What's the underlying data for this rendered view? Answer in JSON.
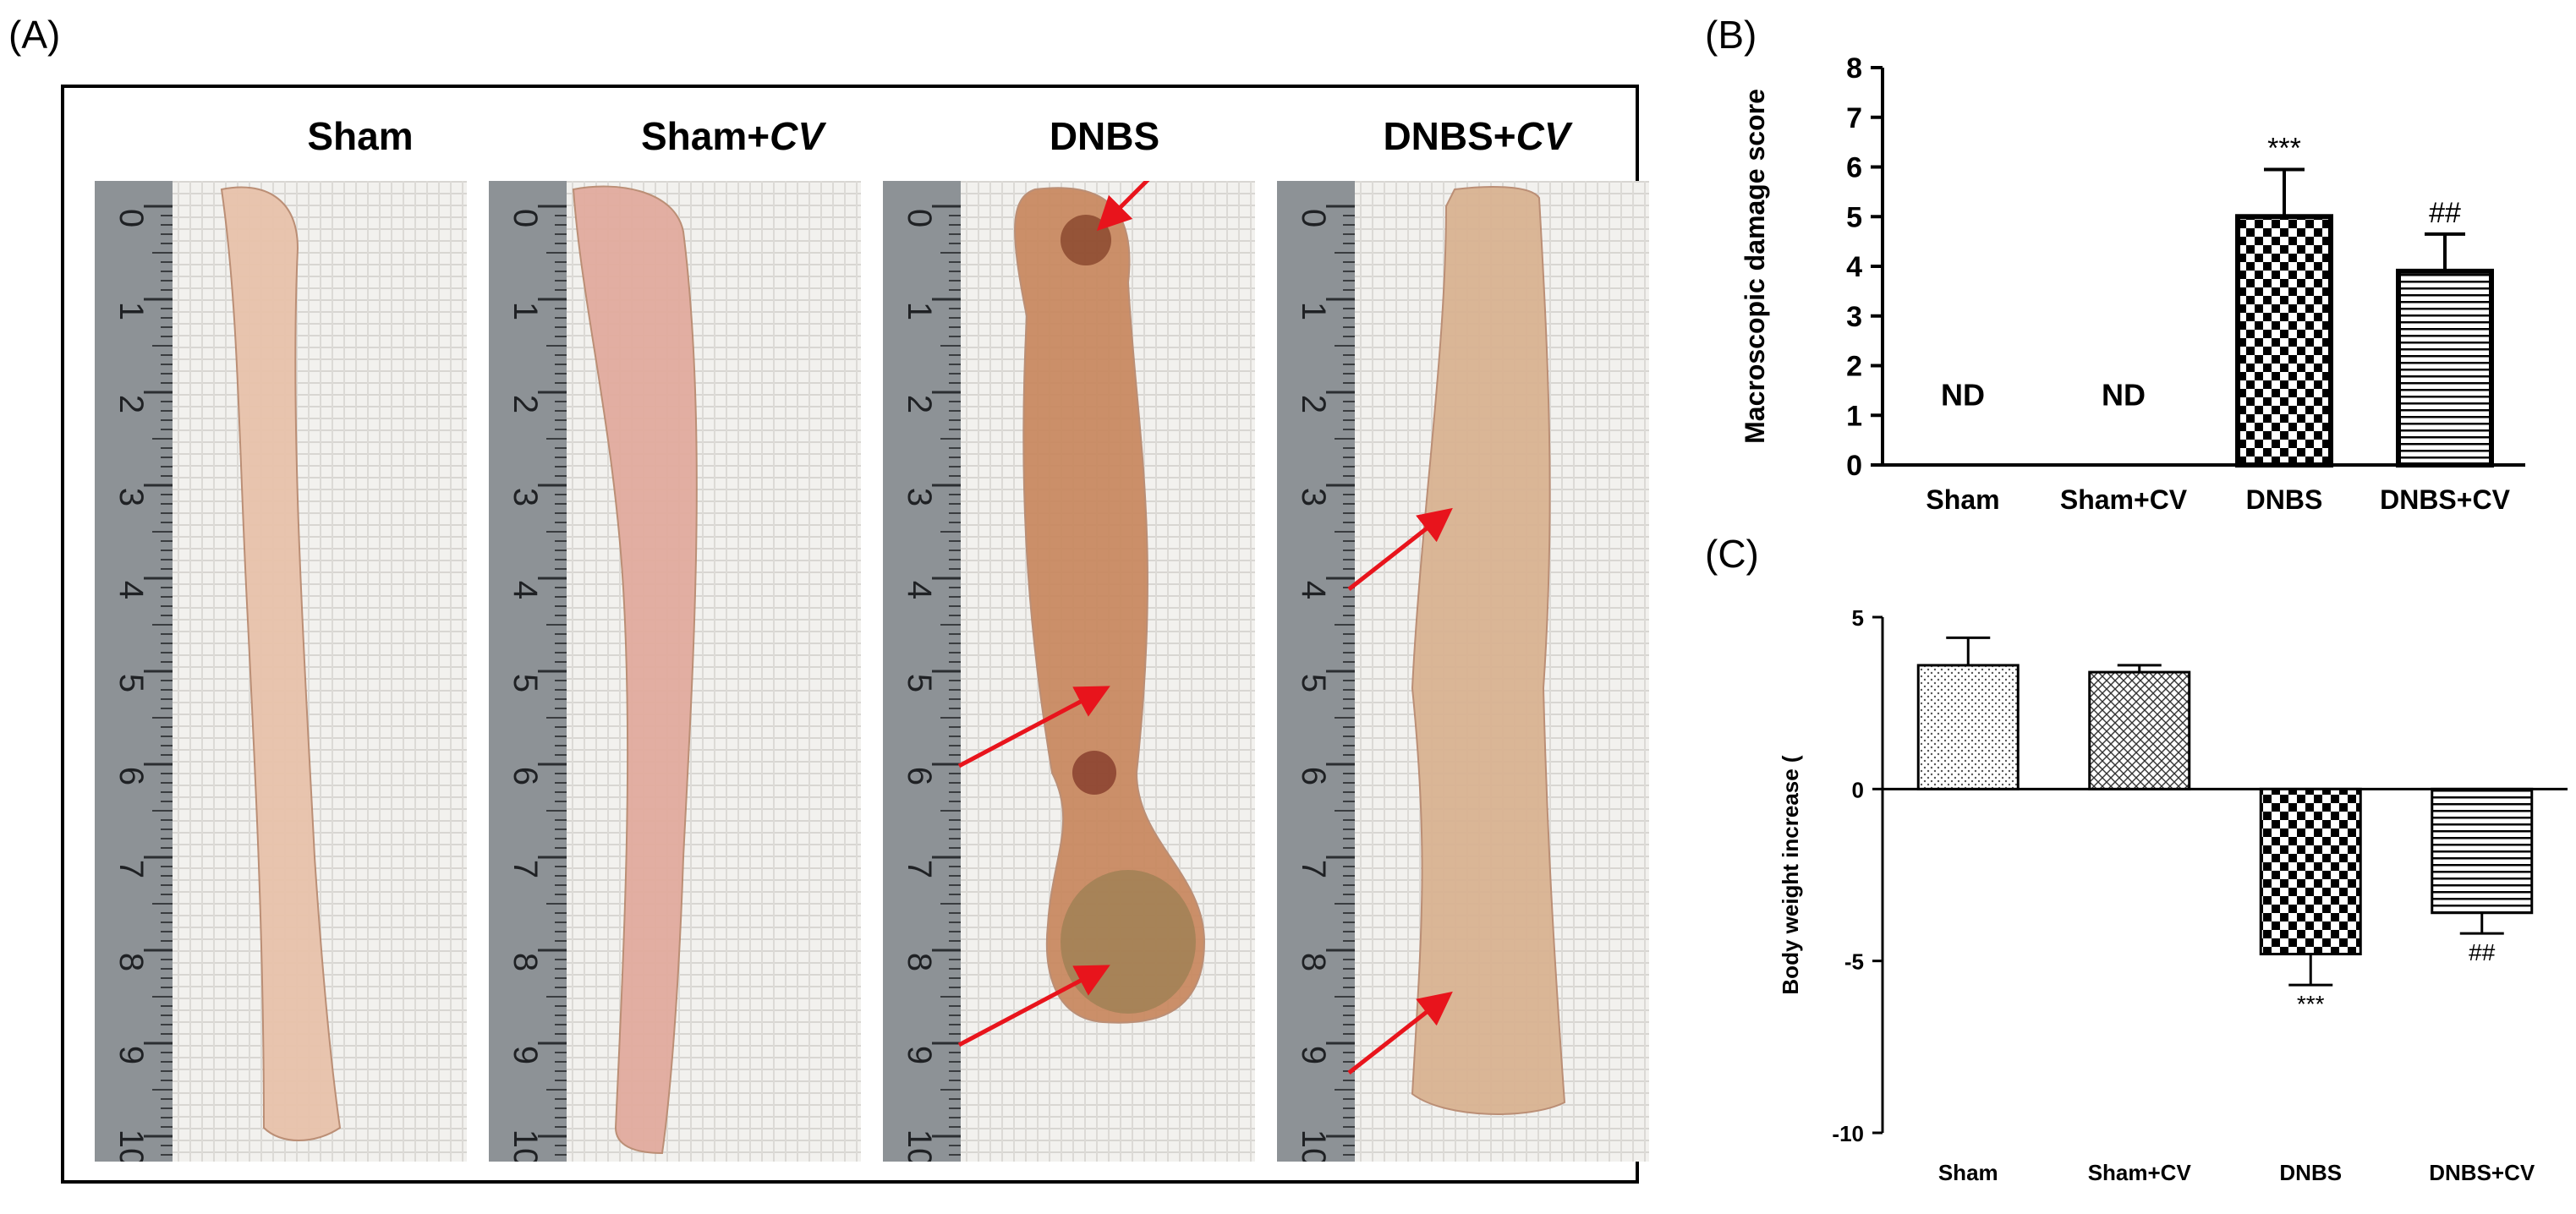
{
  "panel_labels": {
    "a": "(A)",
    "b": "(B)",
    "c": "(C)"
  },
  "photos": [
    {
      "group": "Sham",
      "suffix": "",
      "ruler_ticks": [
        "0",
        "1",
        "2",
        "3",
        "4",
        "5",
        "6",
        "7",
        "8",
        "9",
        "10"
      ],
      "tissue_color": "#e8c2ab",
      "arrows": []
    },
    {
      "group": "Sham+",
      "suffix": "CV",
      "ruler_ticks": [
        "0",
        "1",
        "2",
        "3",
        "4",
        "5",
        "6",
        "7",
        "8",
        "9",
        "10"
      ],
      "tissue_color": "#e2ab9e",
      "arrows": []
    },
    {
      "group": "DNBS",
      "suffix": "",
      "ruler_ticks": [
        "0",
        "1",
        "2",
        "3",
        "4",
        "5",
        "6",
        "7",
        "8",
        "9",
        "10"
      ],
      "tissue_color": "#c98a62",
      "arrows": [
        0.02,
        0.52,
        0.82
      ]
    },
    {
      "group": "DNBS+",
      "suffix": "CV",
      "ruler_ticks": [
        "0",
        "1",
        "2",
        "3",
        "4",
        "5",
        "6",
        "7",
        "8",
        "9",
        "10"
      ],
      "tissue_color": "#d9b392",
      "arrows": [
        0.33,
        0.85
      ]
    }
  ],
  "chart_data": [
    {
      "type": "bar",
      "panel": "B",
      "categories": [
        "Sham",
        "Sham+CV",
        "DNBS",
        "DNBS+CV"
      ],
      "values": [
        0,
        0,
        5.0,
        3.9
      ],
      "errors": [
        0,
        0,
        0.95,
        0.75
      ],
      "bar_labels": [
        "ND",
        "ND",
        "",
        ""
      ],
      "significance": [
        "",
        "",
        "***",
        "##"
      ],
      "patterns": [
        "none",
        "none",
        "checker",
        "horizontal"
      ],
      "ylabel": "Macroscopic damage score",
      "ylim": [
        0,
        8
      ],
      "yticks": [
        "0",
        "1",
        "2",
        "3",
        "4",
        "5",
        "6",
        "7",
        "8"
      ]
    },
    {
      "type": "bar",
      "panel": "C",
      "categories": [
        "Sham",
        "Sham+CV",
        "DNBS",
        "DNBS+CV"
      ],
      "values": [
        3.6,
        3.4,
        -4.8,
        -3.6
      ],
      "errors": [
        0.8,
        0.2,
        0.9,
        0.6
      ],
      "significance": [
        "",
        "",
        "***",
        "##"
      ],
      "patterns": [
        "dots",
        "crosshatch",
        "checker",
        "horizontal"
      ],
      "ylabel": "Body weight increase (",
      "ylim": [
        -10,
        5
      ],
      "yticks": [
        "5",
        "0",
        "-5",
        "-10"
      ]
    }
  ]
}
